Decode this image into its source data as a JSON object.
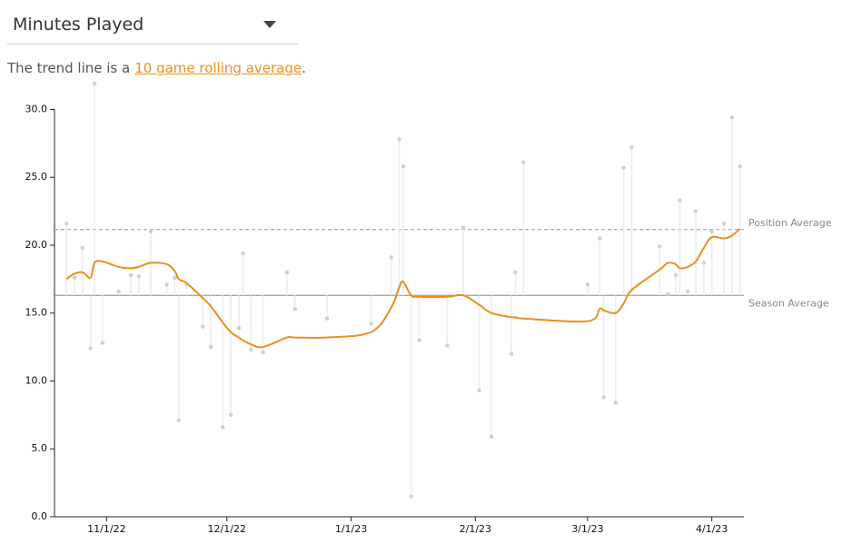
{
  "header": {
    "dropdown": "Minutes Played",
    "note": {
      "before": "The trend line is a",
      "link": "10 game rolling average",
      "after": "."
    }
  },
  "chart_data": {
    "type": "lollipop",
    "x": [
      "10/22/22",
      "10/24/22",
      "10/26/22",
      "10/28/22",
      "10/29/22",
      "10/31/22",
      "11/4/22",
      "11/7/22",
      "11/9/22",
      "11/12/22",
      "11/16/22",
      "11/18/22",
      "11/19/22",
      "11/21/22",
      "11/25/22",
      "11/27/22",
      "11/30/22",
      "12/2/22",
      "12/4/22",
      "12/5/22",
      "12/7/22",
      "12/10/22",
      "12/16/22",
      "12/18/22",
      "12/26/22",
      "1/6/23",
      "1/11/23",
      "1/13/23",
      "1/14/23",
      "1/16/23",
      "1/18/23",
      "1/25/23",
      "1/29/23",
      "2/2/23",
      "2/5/23",
      "2/10/23",
      "2/11/23",
      "2/13/23",
      "3/1/23",
      "3/4/23",
      "3/5/23",
      "3/8/23",
      "3/10/23",
      "3/12/23",
      "3/19/23",
      "3/21/23",
      "3/23/23",
      "3/24/23",
      "3/26/23",
      "3/28/23",
      "3/30/23",
      "4/1/23",
      "4/4/23",
      "4/6/23",
      "4/8/23"
    ],
    "values": [
      21.6,
      17.6,
      19.8,
      12.4,
      31.9,
      12.8,
      16.6,
      17.8,
      17.7,
      21.0,
      17.1,
      17.6,
      7.1,
      17.1,
      14.0,
      12.5,
      6.6,
      7.5,
      13.9,
      19.4,
      12.3,
      12.1,
      18.0,
      15.3,
      14.6,
      14.2,
      19.1,
      27.8,
      25.8,
      1.5,
      13.0,
      12.6,
      21.3,
      9.3,
      5.9,
      12.0,
      18.0,
      26.1,
      17.1,
      20.5,
      8.8,
      8.4,
      25.7,
      27.2,
      19.9,
      16.4,
      17.8,
      23.3,
      16.6,
      22.5,
      18.7,
      21.0,
      21.6,
      29.4,
      25.8
    ],
    "color": "#cfcfcf",
    "trend": {
      "color": "#e8901f",
      "values": [
        17.5,
        17.9,
        18.0,
        17.6,
        18.7,
        18.8,
        18.4,
        18.3,
        18.4,
        18.7,
        18.6,
        18.1,
        17.5,
        17.2,
        16.1,
        15.5,
        14.3,
        13.6,
        13.2,
        13.0,
        12.7,
        12.5,
        13.2,
        13.2,
        13.2,
        13.6,
        15.4,
        16.9,
        17.3,
        16.3,
        16.2,
        16.2,
        16.3,
        15.6,
        15.0,
        14.7,
        14.7,
        14.6,
        14.4,
        15.3,
        15.2,
        15.0,
        15.7,
        16.7,
        18.2,
        18.7,
        18.6,
        18.3,
        18.4,
        18.8,
        19.8,
        20.6,
        20.5,
        20.7,
        21.2
      ]
    },
    "reference_lines": [
      {
        "label": "Position Average",
        "value": 21.15,
        "dashed": true
      },
      {
        "label": "Season Average",
        "value": 16.3,
        "dashed": false
      }
    ],
    "xlim": [
      "10/19/22",
      "4/9/23"
    ],
    "xticks": [
      "11/1/22",
      "12/1/22",
      "1/1/23",
      "2/1/23",
      "3/1/23",
      "4/1/23"
    ],
    "ylim": [
      0,
      31.5
    ],
    "yticks": [
      {
        "value": 0,
        "label": "0.0"
      },
      {
        "value": 5,
        "label": "5.0"
      },
      {
        "value": 10,
        "label": "10.0"
      },
      {
        "value": 15,
        "label": "15.0"
      },
      {
        "value": 20,
        "label": "20.0"
      },
      {
        "value": 25,
        "label": "25.0"
      },
      {
        "value": 30,
        "label": "30.0"
      }
    ]
  }
}
